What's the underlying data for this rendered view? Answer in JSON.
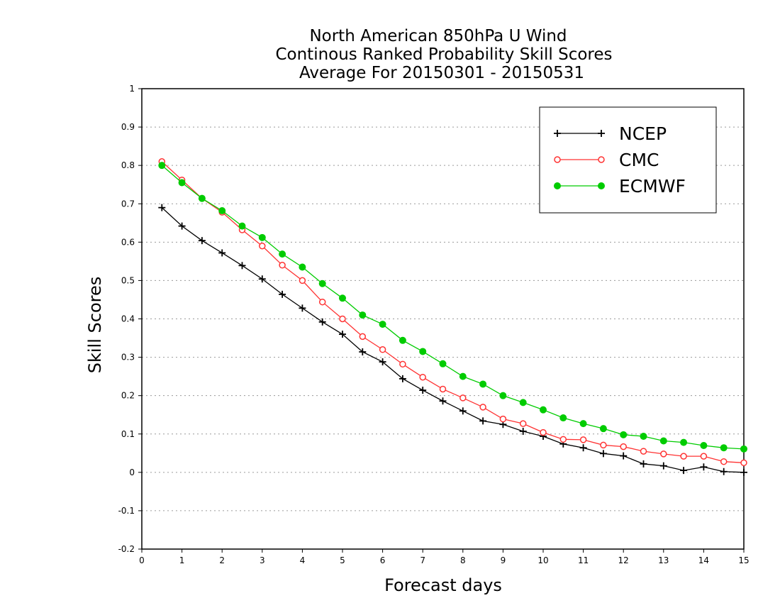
{
  "chart_data": {
    "type": "line",
    "title_lines": [
      "North American 850hPa U Wind",
      "Continous Ranked Probability Skill Scores",
      "Average For 20150301 - 20150531"
    ],
    "xlabel": "Forecast days",
    "ylabel": "Skill Scores",
    "xlim": [
      0,
      15
    ],
    "ylim": [
      -0.2,
      1
    ],
    "x_ticks": [
      0,
      1,
      2,
      3,
      4,
      5,
      6,
      7,
      8,
      9,
      10,
      11,
      12,
      13,
      14,
      15
    ],
    "x_tick_labels": [
      "0",
      "1",
      "2",
      "3",
      "4",
      "5",
      "6",
      "7",
      "8",
      "9",
      "10",
      "11",
      "12",
      "13",
      "14",
      "15"
    ],
    "y_ticks": [
      -0.2,
      -0.1,
      0,
      0.1,
      0.2,
      0.3,
      0.4,
      0.5,
      0.6,
      0.7,
      0.8,
      0.9,
      1
    ],
    "y_tick_labels": [
      "-0.2",
      "-0.1",
      "0",
      "0.1",
      "0.2",
      "0.3",
      "0.4",
      "0.5",
      "0.6",
      "0.7",
      "0.8",
      "0.9",
      "1"
    ],
    "grid": "horizontal dotted",
    "legend_position": "top-right",
    "x": [
      0.5,
      1,
      1.5,
      2,
      2.5,
      3,
      3.5,
      4,
      4.5,
      5,
      5.5,
      6,
      6.5,
      7,
      7.5,
      8,
      8.5,
      9,
      9.5,
      10,
      10.5,
      11,
      11.5,
      12,
      12.5,
      13,
      13.5,
      14,
      14.5,
      15
    ],
    "series": [
      {
        "name": "NCEP",
        "color": "#000000",
        "marker": "plus",
        "values": [
          0.69,
          0.642,
          0.604,
          0.572,
          0.539,
          0.504,
          0.464,
          0.428,
          0.392,
          0.36,
          0.314,
          0.288,
          0.244,
          0.214,
          0.186,
          0.16,
          0.134,
          0.125,
          0.107,
          0.094,
          0.074,
          0.064,
          0.049,
          0.043,
          0.022,
          0.017,
          0.005,
          0.014,
          0.002,
          0.0
        ]
      },
      {
        "name": "CMC",
        "color": "#ff3333",
        "marker": "open-circle",
        "values": [
          0.81,
          0.762,
          0.714,
          0.678,
          0.632,
          0.59,
          0.54,
          0.5,
          0.444,
          0.4,
          0.354,
          0.32,
          0.282,
          0.248,
          0.217,
          0.194,
          0.17,
          0.139,
          0.127,
          0.104,
          0.086,
          0.085,
          0.071,
          0.067,
          0.055,
          0.048,
          0.042,
          0.042,
          0.028,
          0.025
        ]
      },
      {
        "name": "ECMWF",
        "color": "#00cc00",
        "marker": "filled-circle",
        "values": [
          0.8,
          0.755,
          0.714,
          0.682,
          0.642,
          0.612,
          0.569,
          0.535,
          0.492,
          0.454,
          0.41,
          0.386,
          0.344,
          0.315,
          0.283,
          0.25,
          0.23,
          0.2,
          0.182,
          0.163,
          0.142,
          0.127,
          0.114,
          0.098,
          0.094,
          0.082,
          0.078,
          0.07,
          0.064,
          0.061
        ]
      }
    ]
  }
}
